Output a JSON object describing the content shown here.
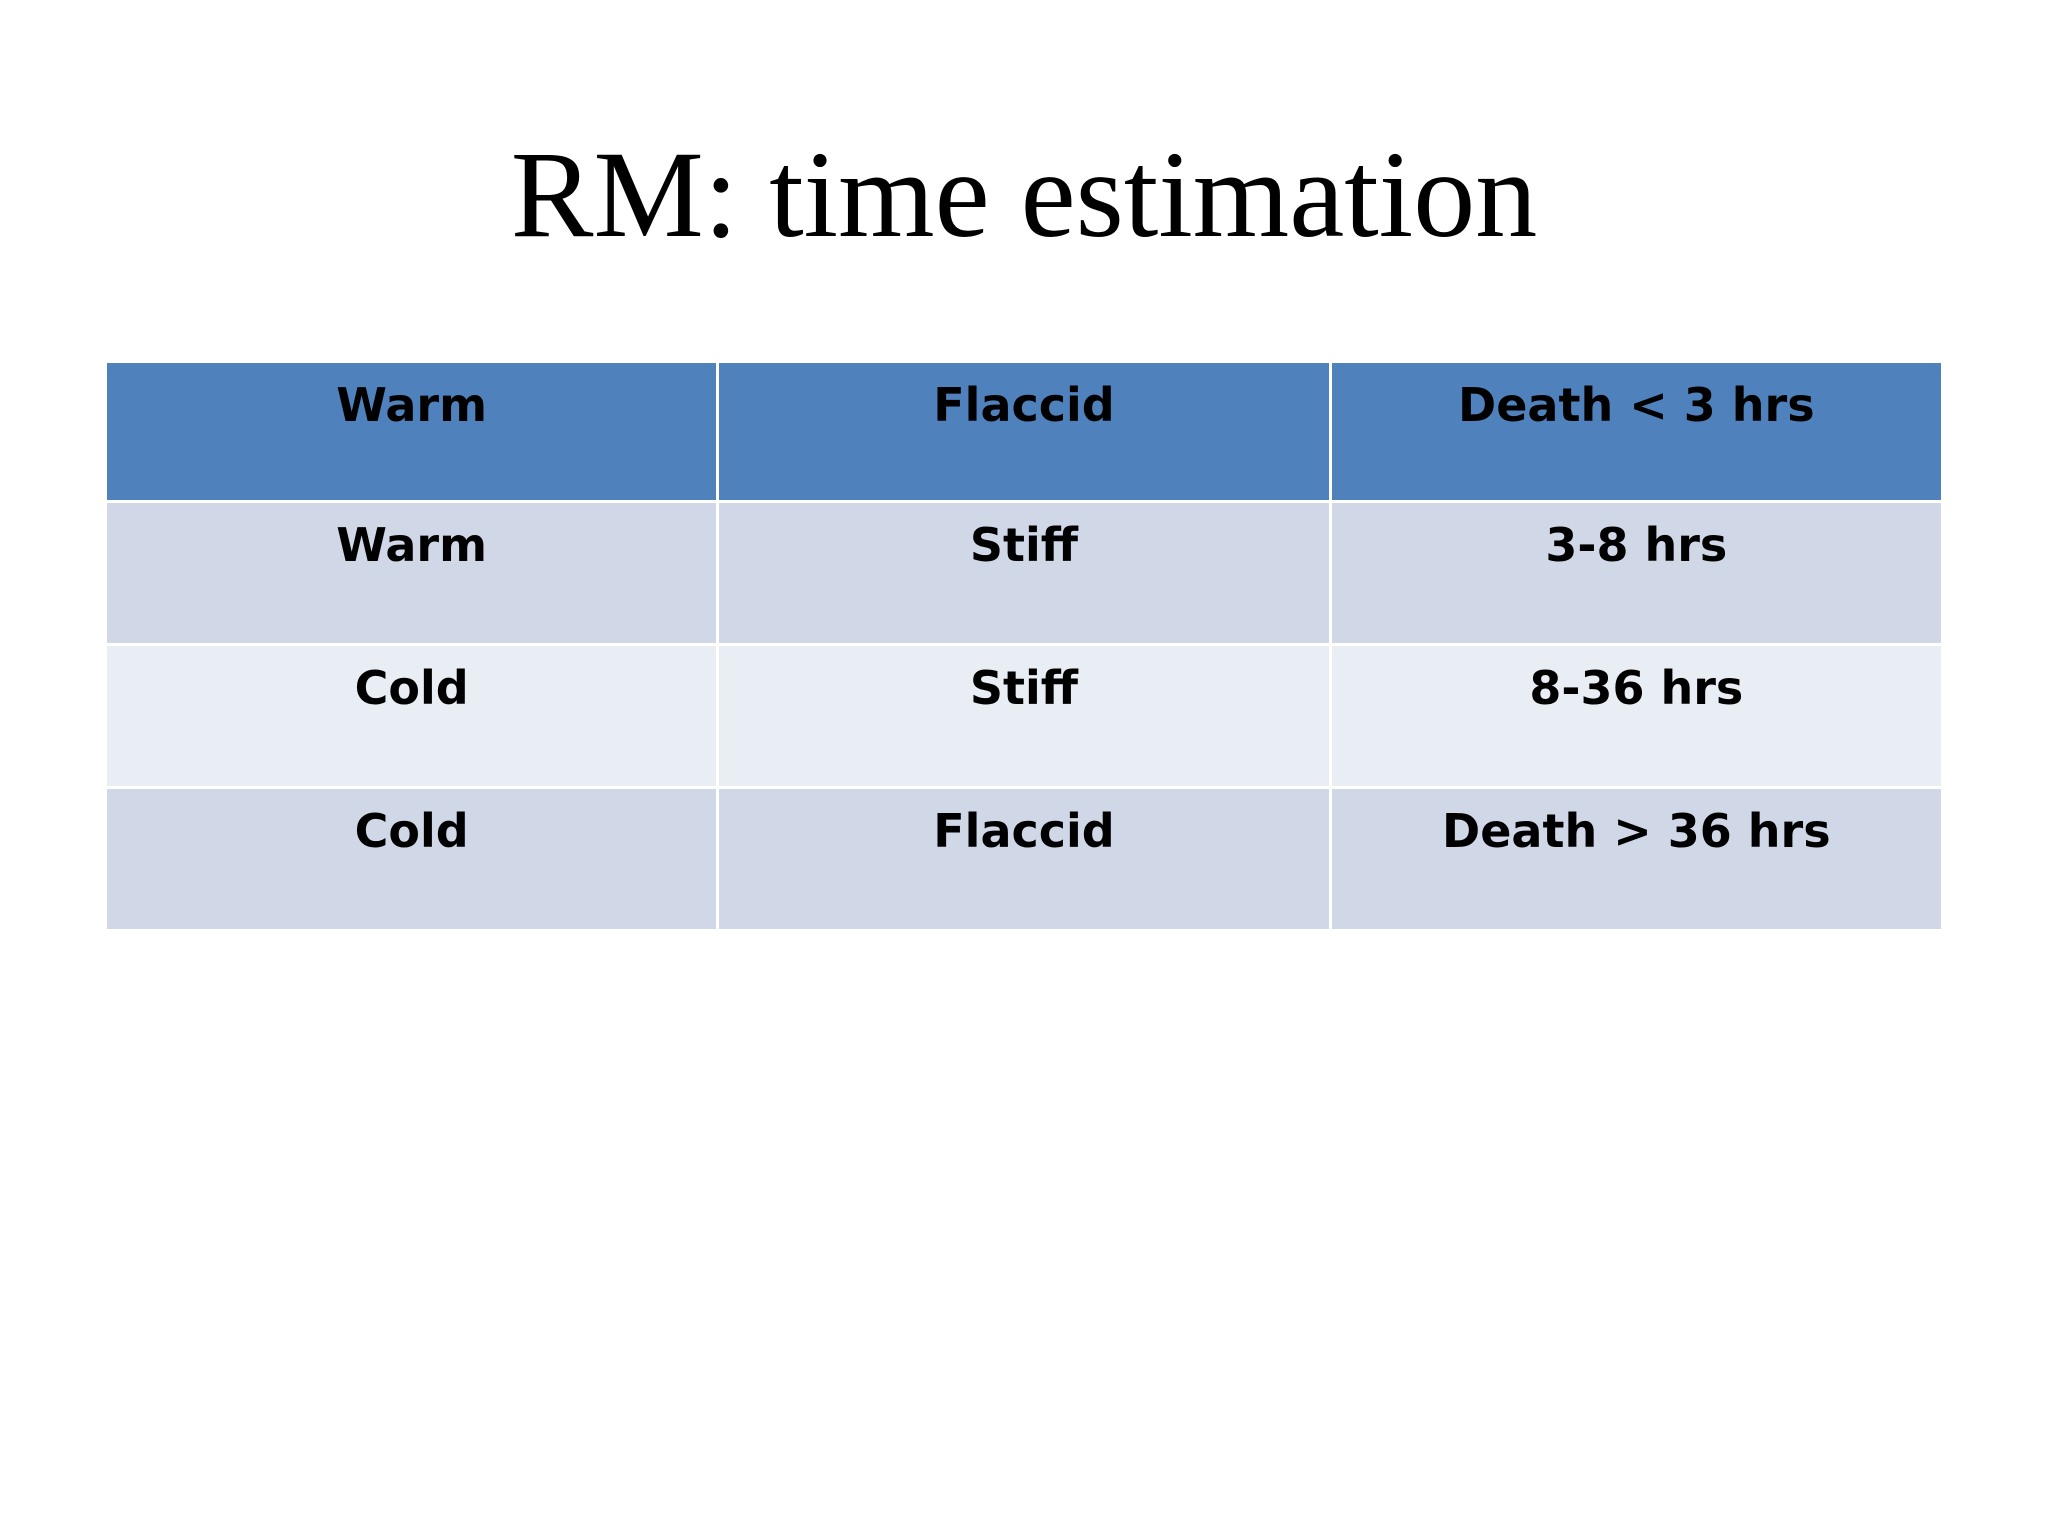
{
  "slide": {
    "title": "RM: time estimation"
  },
  "table": {
    "rows": [
      {
        "cells": [
          "Warm",
          "Flaccid",
          "Death < 3 hrs"
        ]
      },
      {
        "cells": [
          "Warm",
          "Stiff",
          "3-8 hrs"
        ]
      },
      {
        "cells": [
          "Cold",
          "Stiff",
          "8-36 hrs"
        ]
      },
      {
        "cells": [
          "Cold",
          "Flaccid",
          "Death > 36 hrs"
        ]
      }
    ]
  },
  "colors": {
    "header_fill": "#4f81bd",
    "band_dark": "#d0d8e8",
    "band_light": "#e9edf4"
  }
}
